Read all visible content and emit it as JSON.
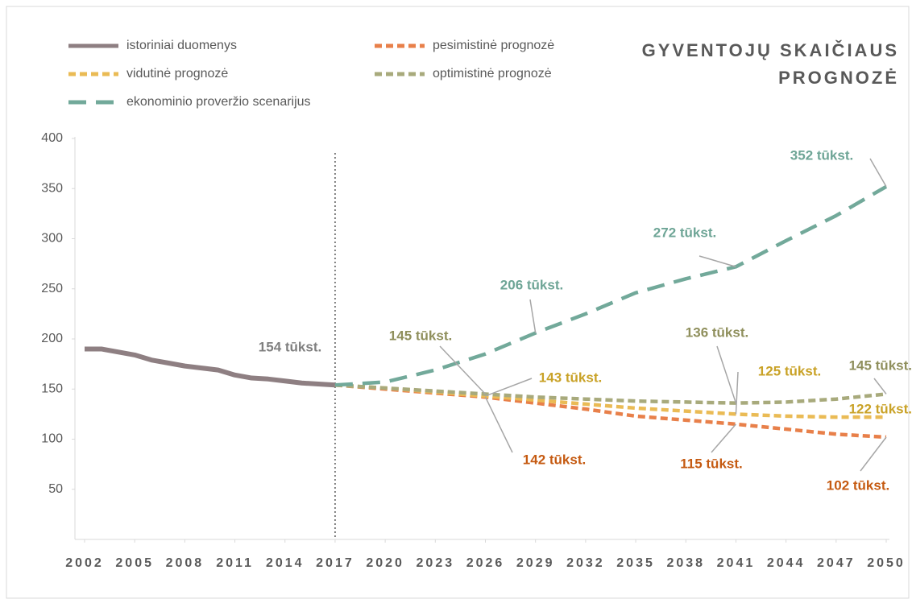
{
  "chart_data": {
    "type": "line",
    "title": "GYVENTOJŲ SKAIČIAUS PROGNOZĖ",
    "xlim": [
      2002,
      2050
    ],
    "xticks": [
      2002,
      2005,
      2008,
      2011,
      2014,
      2017,
      2020,
      2023,
      2026,
      2029,
      2032,
      2035,
      2038,
      2041,
      2044,
      2047,
      2050
    ],
    "ylim": [
      0,
      400
    ],
    "yticks": [
      50,
      100,
      150,
      200,
      250,
      300,
      350,
      400
    ],
    "divider_x": 2017,
    "series": [
      {
        "name": "istoriniai duomenys",
        "color": "#8e7f82",
        "label_color": "#7f7f7f",
        "dash": "solid",
        "x": [
          2002,
          2003,
          2004,
          2005,
          2006,
          2007,
          2008,
          2009,
          2010,
          2011,
          2012,
          2013,
          2014,
          2015,
          2016,
          2017
        ],
        "values": [
          190,
          190,
          187,
          184,
          179,
          176,
          173,
          171,
          169,
          164,
          161,
          160,
          158,
          156,
          155,
          154
        ],
        "value_labels": [
          null,
          null,
          null,
          null,
          null,
          null,
          null,
          null,
          null,
          null,
          null,
          null,
          null,
          null,
          null,
          "154 tūkst."
        ]
      },
      {
        "name": "pesimistinė prognozė",
        "color": "#e8804a",
        "label_color": "#c55a11",
        "dash": "short",
        "x": [
          2017,
          2020,
          2023,
          2026,
          2029,
          2032,
          2035,
          2038,
          2041,
          2044,
          2047,
          2050
        ],
        "values": [
          154,
          150,
          146,
          142,
          136,
          130,
          123,
          119,
          115,
          110,
          105,
          102
        ],
        "value_labels": [
          null,
          null,
          null,
          "142 tūkst.",
          null,
          null,
          null,
          null,
          "115 tūkst.",
          null,
          null,
          "102 tūkst."
        ]
      },
      {
        "name": "vidutinė prognozė",
        "color": "#eabb55",
        "label_color": "#c9a227",
        "dash": "short",
        "x": [
          2017,
          2020,
          2023,
          2026,
          2029,
          2032,
          2035,
          2038,
          2041,
          2044,
          2047,
          2050
        ],
        "values": [
          154,
          151,
          147,
          143,
          139,
          135,
          131,
          128,
          125,
          123,
          122,
          122
        ],
        "value_labels": [
          null,
          null,
          null,
          "143 tūkst.",
          null,
          null,
          null,
          null,
          "125 tūkst.",
          null,
          null,
          "122 tūkst."
        ]
      },
      {
        "name": "optimistinė prognozė",
        "color": "#a8aa7c",
        "label_color": "#8f8f5c",
        "dash": "short",
        "x": [
          2017,
          2020,
          2023,
          2026,
          2029,
          2032,
          2035,
          2038,
          2041,
          2044,
          2047,
          2050
        ],
        "values": [
          154,
          151,
          148,
          145,
          142,
          140,
          138,
          137,
          136,
          137,
          140,
          145
        ],
        "value_labels": [
          null,
          null,
          null,
          "145 tūkst.",
          null,
          null,
          null,
          null,
          "136 tūkst.",
          null,
          null,
          "145 tūkst."
        ]
      },
      {
        "name": "ekonominio proveržio scenarijus",
        "color": "#72a99a",
        "label_color": "#6ea596",
        "dash": "long",
        "x": [
          2017,
          2020,
          2023,
          2026,
          2029,
          2032,
          2035,
          2038,
          2041,
          2044,
          2047,
          2050
        ],
        "values": [
          154,
          157,
          169,
          185,
          206,
          225,
          246,
          260,
          272,
          298,
          323,
          352
        ],
        "value_labels": [
          null,
          null,
          null,
          null,
          "206 tūkst.",
          null,
          null,
          null,
          "272 tūkst.",
          null,
          null,
          "352 tūkst."
        ]
      }
    ]
  }
}
